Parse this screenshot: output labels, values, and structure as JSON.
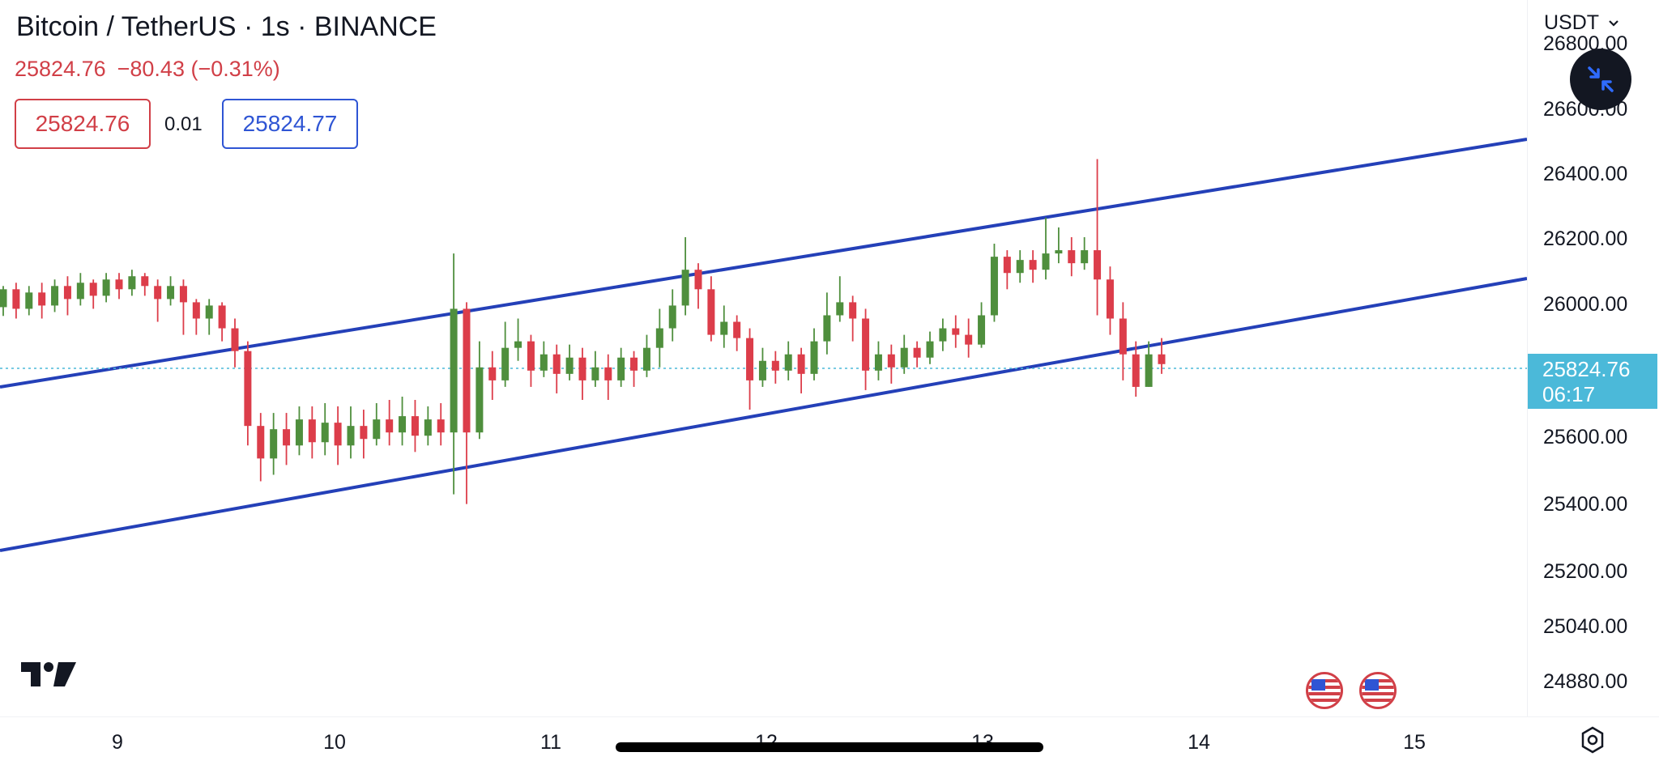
{
  "header": {
    "symbol_title": "Bitcoin / TetherUS · 1s · BINANCE",
    "last_price": "25824.76",
    "change": "−80.43 (−0.31%)",
    "sell_price": "25824.76",
    "spread": "0.01",
    "buy_price": "25824.77"
  },
  "currency_selector": {
    "label": "USDT",
    "icon": "chevron-down-icon"
  },
  "collapse_button": {
    "icon": "collapse-arrows-icon"
  },
  "price_axis": {
    "ticks": [
      "26800.00",
      "26600.00",
      "26400.00",
      "26200.00",
      "26000.00",
      "25600.00",
      "25400.00",
      "25200.00",
      "25040.00",
      "24880.00"
    ],
    "current_price_label": "25824.76",
    "countdown": "06:17"
  },
  "time_axis": {
    "ticks": [
      "9",
      "10",
      "11",
      "12",
      "13",
      "14",
      "15"
    ]
  },
  "colors": {
    "up": "#4f8f3d",
    "down": "#dc3d4a",
    "channel": "#2440b8",
    "current": "#4bb9d9",
    "sell": "#d13f47",
    "buy": "#2f55d4"
  },
  "icons": {
    "logo": "tradingview-logo",
    "events": [
      "us-flag-icon",
      "us-flag-icon"
    ],
    "settings": "settings-gear-icon"
  },
  "chart_data": {
    "type": "candlestick",
    "y_range": [
      24800,
      26900
    ],
    "x_tick_labels": [
      "9",
      "10",
      "11",
      "12",
      "13",
      "14",
      "15"
    ],
    "current_price": 25824.76,
    "channel_lines": [
      "upper",
      "lower",
      "middle"
    ],
    "candles": [
      [
        25985,
        26040,
        25958,
        26050
      ],
      [
        26040,
        25980,
        25950,
        26060
      ],
      [
        25980,
        26030,
        25960,
        26050
      ],
      [
        26030,
        25990,
        25950,
        26060
      ],
      [
        25990,
        26050,
        25970,
        26070
      ],
      [
        26050,
        26010,
        25960,
        26080
      ],
      [
        26010,
        26060,
        25990,
        26090
      ],
      [
        26060,
        26020,
        25980,
        26070
      ],
      [
        26020,
        26070,
        26000,
        26090
      ],
      [
        26070,
        26040,
        26010,
        26090
      ],
      [
        26040,
        26080,
        26020,
        26100
      ],
      [
        26080,
        26050,
        26020,
        26090
      ],
      [
        26050,
        26010,
        25940,
        26070
      ],
      [
        26010,
        26050,
        25990,
        26080
      ],
      [
        26050,
        26000,
        25900,
        26070
      ],
      [
        26000,
        25950,
        25900,
        26010
      ],
      [
        25950,
        25990,
        25900,
        26010
      ],
      [
        25990,
        25920,
        25880,
        26000
      ],
      [
        25920,
        25850,
        25800,
        25950
      ],
      [
        25850,
        25620,
        25560,
        25880
      ],
      [
        25620,
        25520,
        25450,
        25660
      ],
      [
        25520,
        25610,
        25470,
        25660
      ],
      [
        25610,
        25560,
        25500,
        25660
      ],
      [
        25560,
        25640,
        25530,
        25680
      ],
      [
        25640,
        25570,
        25520,
        25680
      ],
      [
        25570,
        25630,
        25530,
        25690
      ],
      [
        25630,
        25560,
        25500,
        25680
      ],
      [
        25560,
        25620,
        25520,
        25680
      ],
      [
        25620,
        25580,
        25520,
        25670
      ],
      [
        25580,
        25640,
        25560,
        25690
      ],
      [
        25640,
        25600,
        25560,
        25700
      ],
      [
        25600,
        25650,
        25560,
        25710
      ],
      [
        25650,
        25590,
        25540,
        25700
      ],
      [
        25590,
        25640,
        25560,
        25680
      ],
      [
        25640,
        25600,
        25560,
        25690
      ],
      [
        25600,
        25980,
        25410,
        26150
      ],
      [
        25980,
        25600,
        25380,
        26000
      ],
      [
        25600,
        25800,
        25580,
        25880
      ],
      [
        25800,
        25760,
        25700,
        25850
      ],
      [
        25760,
        25860,
        25740,
        25940
      ],
      [
        25860,
        25880,
        25820,
        25950
      ],
      [
        25880,
        25790,
        25740,
        25900
      ],
      [
        25790,
        25840,
        25770,
        25880
      ],
      [
        25840,
        25780,
        25720,
        25870
      ],
      [
        25780,
        25830,
        25760,
        25870
      ],
      [
        25830,
        25760,
        25700,
        25860
      ],
      [
        25760,
        25800,
        25740,
        25850
      ],
      [
        25800,
        25760,
        25700,
        25840
      ],
      [
        25760,
        25830,
        25740,
        25860
      ],
      [
        25830,
        25790,
        25740,
        25850
      ],
      [
        25790,
        25860,
        25770,
        25900
      ],
      [
        25860,
        25920,
        25800,
        25980
      ],
      [
        25920,
        25990,
        25880,
        26040
      ],
      [
        25990,
        26100,
        25960,
        26200
      ],
      [
        26100,
        26040,
        25980,
        26120
      ],
      [
        26040,
        25900,
        25880,
        26080
      ],
      [
        25900,
        25940,
        25860,
        25990
      ],
      [
        25940,
        25890,
        25850,
        25960
      ],
      [
        25890,
        25760,
        25670,
        25920
      ],
      [
        25760,
        25820,
        25740,
        25860
      ],
      [
        25820,
        25790,
        25750,
        25850
      ],
      [
        25790,
        25840,
        25760,
        25880
      ],
      [
        25840,
        25780,
        25720,
        25860
      ],
      [
        25780,
        25880,
        25760,
        25920
      ],
      [
        25880,
        25960,
        25840,
        26030
      ],
      [
        25960,
        26000,
        25940,
        26080
      ],
      [
        26000,
        25950,
        25880,
        26020
      ],
      [
        25950,
        25790,
        25730,
        25980
      ],
      [
        25790,
        25840,
        25760,
        25880
      ],
      [
        25840,
        25800,
        25750,
        25870
      ],
      [
        25800,
        25860,
        25780,
        25900
      ],
      [
        25860,
        25830,
        25800,
        25880
      ],
      [
        25830,
        25880,
        25810,
        25910
      ],
      [
        25880,
        25920,
        25850,
        25950
      ],
      [
        25920,
        25900,
        25860,
        25960
      ],
      [
        25900,
        25870,
        25830,
        25950
      ],
      [
        25870,
        25960,
        25860,
        26000
      ],
      [
        25960,
        26140,
        25940,
        26180
      ],
      [
        26140,
        26090,
        26040,
        26160
      ],
      [
        26090,
        26130,
        26060,
        26160
      ],
      [
        26130,
        26100,
        26060,
        26160
      ],
      [
        26100,
        26150,
        26070,
        26260
      ],
      [
        26150,
        26160,
        26120,
        26230
      ],
      [
        26160,
        26120,
        26080,
        26200
      ],
      [
        26120,
        26160,
        26100,
        26200
      ],
      [
        26160,
        26070,
        25960,
        26440
      ],
      [
        26070,
        25950,
        25900,
        26110
      ],
      [
        25950,
        25840,
        25760,
        26000
      ],
      [
        25840,
        25740,
        25710,
        25880
      ],
      [
        25740,
        25840,
        25740,
        25880
      ],
      [
        25840,
        25810,
        25780,
        25890
      ]
    ]
  }
}
